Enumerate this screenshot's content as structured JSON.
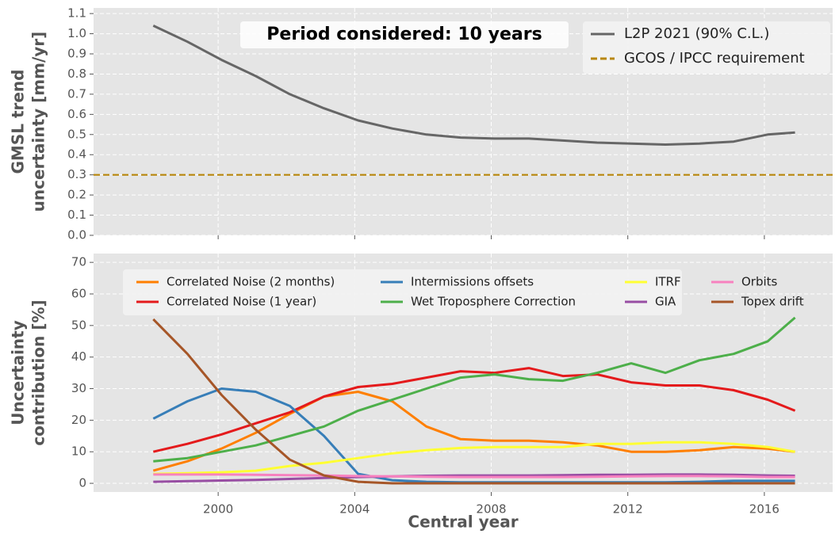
{
  "chart_data": [
    {
      "type": "line",
      "annotation": "Period considered: 10 years",
      "ylabel": [
        "GMSL trend",
        "uncertainty [mm/yr]"
      ],
      "xlim": [
        1996.35,
        2018.0
      ],
      "ylim": [
        0,
        1.128
      ],
      "xticks": [
        2000,
        2004,
        2008,
        2012,
        2016
      ],
      "yticks": [
        {
          "value": 0,
          "label": "0.0"
        },
        0.1,
        0.2,
        0.3,
        0.4,
        0.5,
        0.6,
        0.7,
        0.8,
        0.9,
        {
          "value": 1,
          "label": "1.0"
        },
        1.1
      ],
      "grid": true,
      "legend": "upper right",
      "x": [
        1998.1,
        1999.1,
        2000.1,
        2001.1,
        2002.1,
        2003.1,
        2004.1,
        2005.1,
        2006.1,
        2007.1,
        2008.1,
        2009.1,
        2010.1,
        2011.1,
        2012.1,
        2013.1,
        2014.1,
        2015.1,
        2016.1,
        2016.9
      ],
      "series": [
        {
          "name": "L2P 2021 (90% C.L.)",
          "color": "#666666",
          "values": [
            1.04,
            0.96,
            0.87,
            0.79,
            0.7,
            0.63,
            0.57,
            0.53,
            0.5,
            0.485,
            0.48,
            0.48,
            0.47,
            0.46,
            0.455,
            0.45,
            0.455,
            0.465,
            0.5,
            0.51
          ]
        }
      ],
      "reference_lines": [
        {
          "name": "GCOS / IPCC requirement",
          "value": 0.3,
          "color": "#b8860b"
        }
      ]
    },
    {
      "type": "line",
      "ylabel": [
        "Uncertainty",
        "contribution [%]"
      ],
      "xlabel": "Central year",
      "xlim": [
        1996.35,
        2018.0
      ],
      "ylim": [
        -2.75,
        72.8
      ],
      "xticks": [
        2000,
        2004,
        2008,
        2012,
        2016
      ],
      "yticks": [
        0,
        10,
        20,
        30,
        40,
        50,
        60,
        70
      ],
      "grid": true,
      "legend": "upper center",
      "x": [
        1998.1,
        1999.1,
        2000.1,
        2001.1,
        2002.1,
        2003.1,
        2004.1,
        2005.1,
        2006.1,
        2007.1,
        2008.1,
        2009.1,
        2010.1,
        2011.1,
        2012.1,
        2013.1,
        2014.1,
        2015.1,
        2016.1,
        2016.9
      ],
      "series": [
        {
          "name": "Correlated Noise (2 months)",
          "color": "#ff7f00",
          "values": [
            4,
            7,
            11,
            16,
            22,
            27.5,
            29,
            26,
            18,
            14,
            13.5,
            13.5,
            13,
            12,
            10,
            10,
            10.5,
            11.5,
            11,
            10
          ]
        },
        {
          "name": "Correlated Noise (1 year)",
          "color": "#e41a1c",
          "values": [
            10,
            12.5,
            15.5,
            19,
            22.5,
            27.5,
            30.5,
            31.5,
            33.5,
            35.5,
            35,
            36.5,
            34,
            34.5,
            32,
            31,
            31,
            29.5,
            26.5,
            23
          ]
        },
        {
          "name": "Intermissions offsets",
          "color": "#377eb8",
          "values": [
            20.5,
            26,
            30,
            29,
            24.5,
            15,
            3,
            1,
            0.5,
            0.3,
            0.3,
            0.3,
            0.3,
            0.3,
            0.3,
            0.3,
            0.5,
            0.8,
            0.8,
            0.8
          ]
        },
        {
          "name": "Wet Troposphere Correction",
          "color": "#4daf4a",
          "values": [
            7,
            8,
            10,
            12,
            15,
            18,
            23,
            26.5,
            30,
            33.5,
            34.5,
            33,
            32.5,
            35,
            38,
            35,
            39,
            41,
            45,
            52.5
          ]
        },
        {
          "name": "ITRF",
          "color": "#ffff33",
          "values": [
            3,
            3.2,
            3.5,
            4,
            5.5,
            6.5,
            8,
            9.5,
            10.5,
            11.2,
            11.5,
            11.5,
            11.5,
            12.5,
            12.5,
            13,
            13,
            12.5,
            11.5,
            10
          ]
        },
        {
          "name": "GIA",
          "color": "#984ea3",
          "values": [
            0.5,
            0.7,
            0.9,
            1.1,
            1.4,
            1.7,
            2,
            2.2,
            2.4,
            2.5,
            2.5,
            2.5,
            2.6,
            2.7,
            2.7,
            2.8,
            2.8,
            2.7,
            2.5,
            2.4
          ]
        },
        {
          "name": "Orbits",
          "color": "#f781bf",
          "values": [
            2.8,
            2.8,
            2.8,
            2.7,
            2.6,
            2.5,
            2.3,
            2.2,
            2.1,
            2,
            2,
            2,
            2,
            2.1,
            2.2,
            2.3,
            2.3,
            2.2,
            2,
            2
          ]
        },
        {
          "name": "Topex drift",
          "color": "#a65628",
          "values": [
            52,
            41,
            28,
            17,
            7.5,
            2.5,
            0.5,
            0,
            0,
            0,
            0,
            0,
            0,
            0,
            0,
            0,
            0,
            0,
            0,
            0
          ]
        }
      ]
    }
  ]
}
